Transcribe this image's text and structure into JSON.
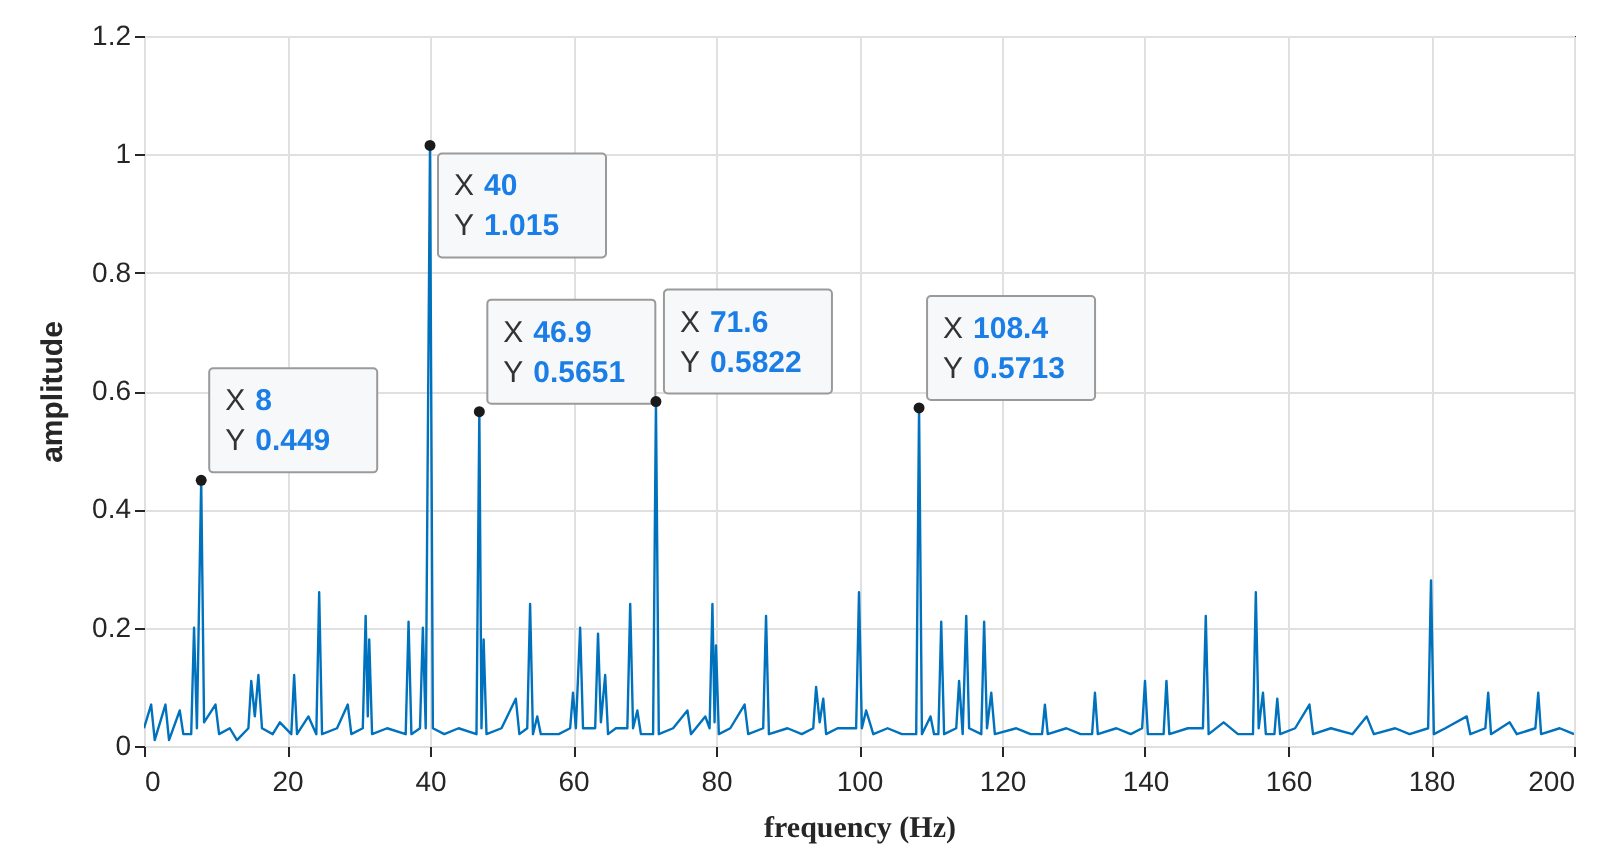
{
  "chart_data": {
    "type": "line",
    "xlabel": "frequency  (Hz)",
    "ylabel": "amplitude",
    "xlim": [
      0,
      200
    ],
    "ylim": [
      0,
      1.2
    ],
    "xticks": [
      0,
      20,
      40,
      60,
      80,
      100,
      120,
      140,
      160,
      180,
      200
    ],
    "yticks": [
      0,
      0.2,
      0.4,
      0.6,
      0.8,
      1,
      1.2
    ],
    "grid": true,
    "marker": "none",
    "line_style": "solid",
    "annotations": [
      {
        "text": "X 8\nY 0.449",
        "x": 8,
        "y": 0.449
      },
      {
        "text": "X 40\nY 1.015",
        "x": 40,
        "y": 1.015
      },
      {
        "text": "X 46.9\nY 0.5651",
        "x": 46.9,
        "y": 0.5651
      },
      {
        "text": "X 71.6\nY 0.5822",
        "x": 71.6,
        "y": 0.5822
      },
      {
        "text": "X 108.4\nY 0.5713",
        "x": 108.4,
        "y": 0.5713
      }
    ],
    "x": [
      0,
      1,
      1.5,
      3,
      3.5,
      5,
      5.5,
      6.6,
      7,
      7.4,
      8,
      8.4,
      10,
      10.5,
      12,
      13,
      14.6,
      15,
      15.5,
      16,
      16.5,
      18,
      19,
      20.6,
      21,
      21.4,
      23,
      24.1,
      24.5,
      24.9,
      27,
      28.5,
      29,
      30.6,
      31,
      31.3,
      31.5,
      31.9,
      34,
      36.6,
      37,
      37.4,
      38.6,
      39,
      39.4,
      40,
      40.4,
      42,
      44,
      46.5,
      46.9,
      47.2,
      47.5,
      47.9,
      50,
      52,
      52.5,
      53.6,
      54,
      54.4,
      55,
      55.5,
      58,
      59.6,
      60,
      60.4,
      61,
      61.4,
      63.1,
      63.5,
      63.9,
      64.5,
      64.9,
      66,
      67.6,
      68,
      68.4,
      69,
      69.5,
      71.2,
      71.6,
      72,
      74,
      76,
      76.5,
      78.5,
      79.1,
      79.5,
      79.8,
      80,
      80.4,
      82,
      84,
      84.5,
      86.6,
      87,
      87.4,
      90,
      92,
      93.6,
      94,
      94.5,
      95,
      95.4,
      97,
      99.6,
      100,
      100.4,
      101,
      102,
      104,
      106,
      108,
      108.4,
      108.8,
      110,
      110.5,
      111.1,
      111.5,
      111.9,
      113.6,
      114,
      114.5,
      115,
      115.4,
      117.1,
      117.5,
      117.9,
      118.5,
      119,
      122,
      124,
      125.6,
      126,
      126.4,
      129,
      131,
      132.6,
      133,
      133.4,
      136,
      138,
      139.6,
      140,
      140.4,
      142.6,
      143,
      143.4,
      146,
      148.1,
      148.5,
      148.9,
      151,
      153,
      155.1,
      155.5,
      155.9,
      156.5,
      156.9,
      158.1,
      158.5,
      158.9,
      161,
      163,
      163.5,
      166,
      169,
      171,
      172,
      175,
      177,
      179.6,
      180,
      180.4,
      182,
      185,
      185.5,
      187.6,
      188,
      188.4,
      191,
      192,
      194.6,
      195,
      195.4,
      198,
      200
    ],
    "series": [
      {
        "color": "#0072bd",
        "values": [
          0.03,
          0.07,
          0.01,
          0.07,
          0.01,
          0.06,
          0.02,
          0.02,
          0.2,
          0.03,
          0.449,
          0.04,
          0.07,
          0.02,
          0.03,
          0.01,
          0.03,
          0.11,
          0.05,
          0.12,
          0.03,
          0.02,
          0.04,
          0.02,
          0.12,
          0.02,
          0.05,
          0.02,
          0.26,
          0.02,
          0.03,
          0.07,
          0.02,
          0.03,
          0.22,
          0.05,
          0.18,
          0.02,
          0.03,
          0.02,
          0.21,
          0.02,
          0.03,
          0.2,
          0.03,
          1.015,
          0.03,
          0.02,
          0.03,
          0.02,
          0.5651,
          0.03,
          0.18,
          0.02,
          0.03,
          0.08,
          0.02,
          0.03,
          0.24,
          0.02,
          0.05,
          0.02,
          0.02,
          0.03,
          0.09,
          0.03,
          0.2,
          0.03,
          0.03,
          0.19,
          0.04,
          0.12,
          0.02,
          0.03,
          0.03,
          0.24,
          0.03,
          0.06,
          0.02,
          0.02,
          0.5822,
          0.02,
          0.03,
          0.06,
          0.02,
          0.05,
          0.03,
          0.24,
          0.04,
          0.17,
          0.02,
          0.03,
          0.07,
          0.02,
          0.03,
          0.22,
          0.02,
          0.03,
          0.02,
          0.03,
          0.1,
          0.04,
          0.08,
          0.02,
          0.03,
          0.03,
          0.26,
          0.03,
          0.06,
          0.02,
          0.03,
          0.02,
          0.02,
          0.5713,
          0.02,
          0.05,
          0.02,
          0.02,
          0.21,
          0.02,
          0.03,
          0.11,
          0.02,
          0.22,
          0.03,
          0.02,
          0.21,
          0.03,
          0.09,
          0.02,
          0.03,
          0.02,
          0.02,
          0.07,
          0.02,
          0.03,
          0.02,
          0.02,
          0.09,
          0.02,
          0.03,
          0.02,
          0.03,
          0.11,
          0.02,
          0.02,
          0.11,
          0.02,
          0.03,
          0.03,
          0.22,
          0.02,
          0.04,
          0.02,
          0.02,
          0.26,
          0.03,
          0.09,
          0.02,
          0.02,
          0.08,
          0.02,
          0.03,
          0.07,
          0.02,
          0.03,
          0.02,
          0.05,
          0.02,
          0.03,
          0.02,
          0.03,
          0.28,
          0.02,
          0.03,
          0.05,
          0.02,
          0.03,
          0.09,
          0.02,
          0.04,
          0.02,
          0.03,
          0.09,
          0.02,
          0.03,
          0.02
        ]
      }
    ]
  }
}
